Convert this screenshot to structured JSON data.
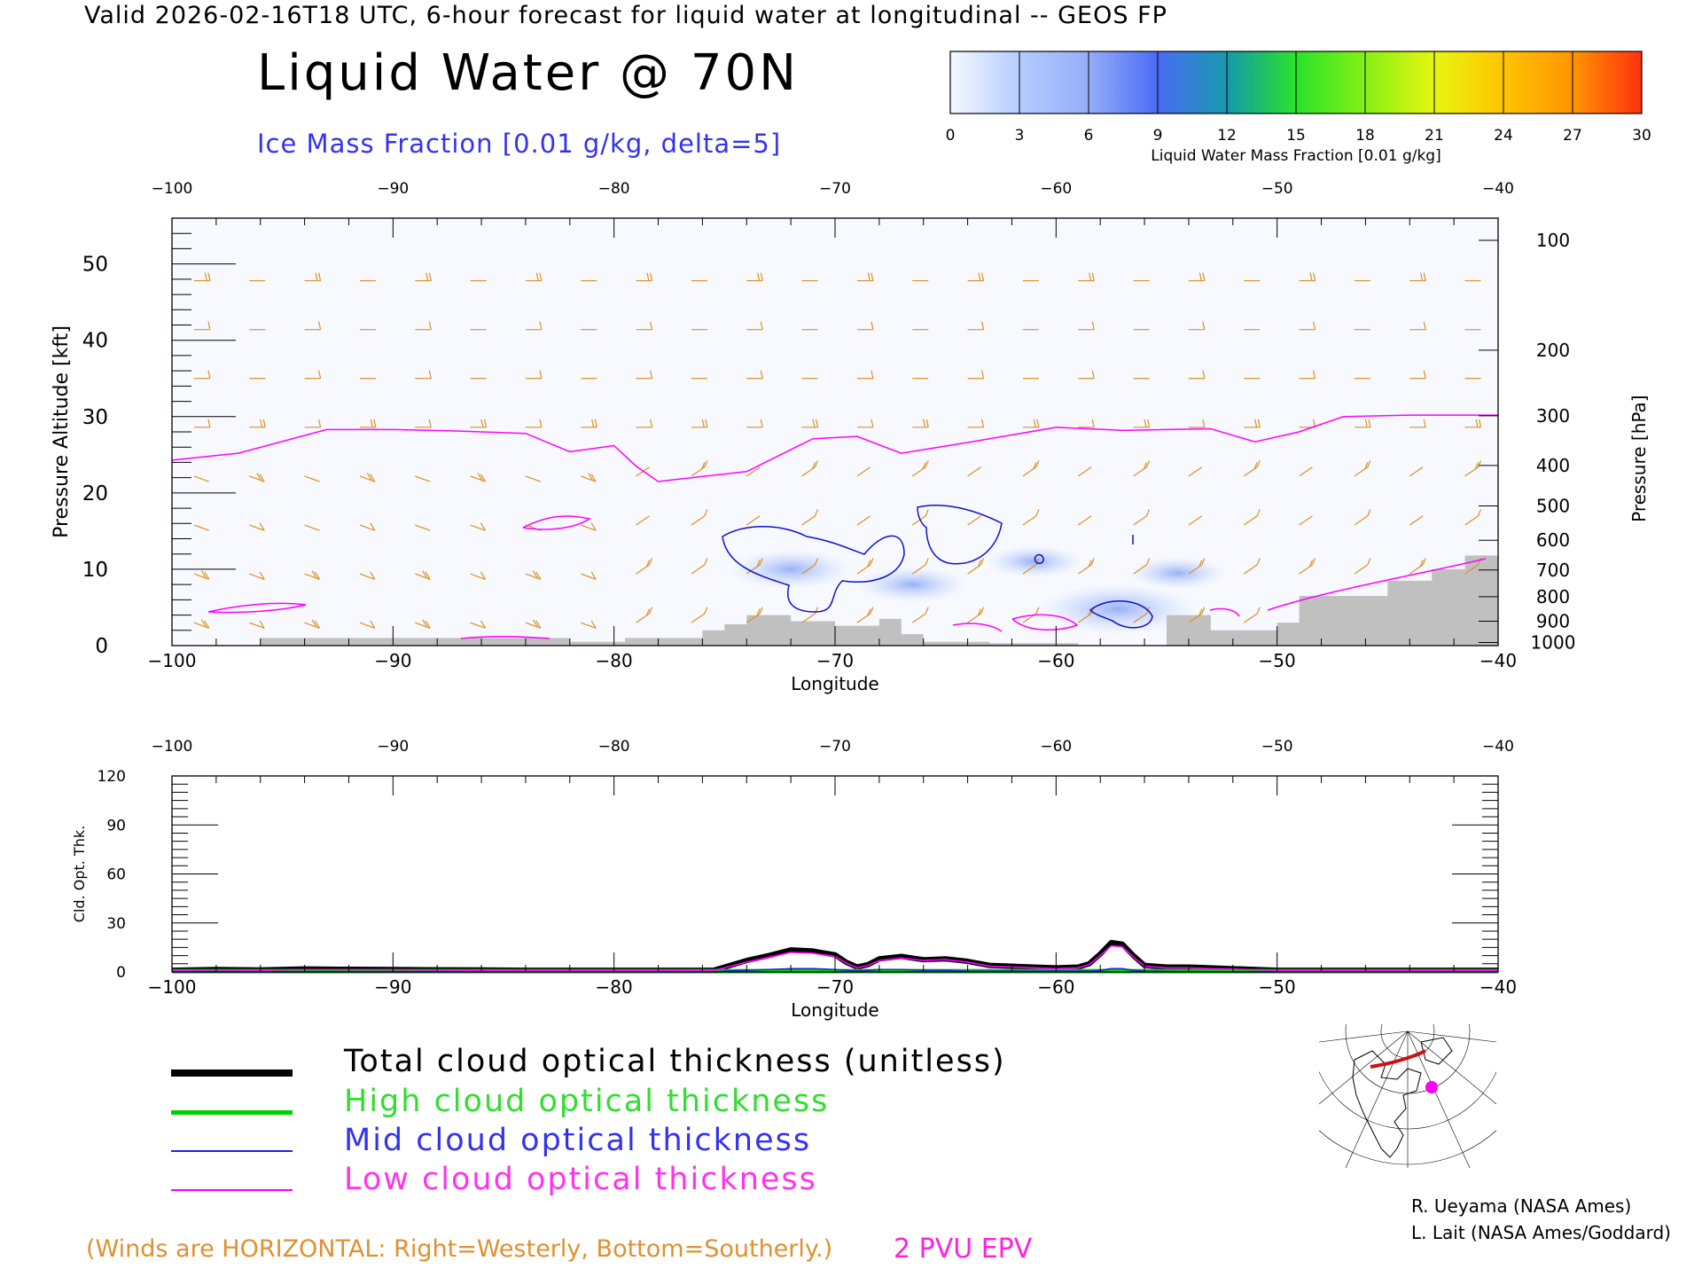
{
  "header": {
    "valid_line": "Valid 2026-02-16T18 UTC, 6-hour forecast for liquid water at longitudinal -- GEOS FP",
    "title": "Liquid Water @ 70N",
    "subtitle": "Ice Mass Fraction [0.01 g/kg, delta=5]"
  },
  "colorbar": {
    "label": "Liquid Water Mass Fraction [0.01 g/kg]",
    "ticks": [
      "0",
      "3",
      "6",
      "9",
      "12",
      "15",
      "18",
      "21",
      "24",
      "27",
      "30"
    ],
    "colors": [
      "#f6f8ff",
      "#b4ccff",
      "#95adf8",
      "#4b6bf5",
      "#159aab",
      "#2ae22a",
      "#85f014",
      "#e8f510",
      "#ffc400",
      "#ff9400",
      "#ff3010"
    ]
  },
  "chart_data": [
    {
      "type": "heatmap",
      "title": "Liquid Water @ 70N",
      "xlabel": "Longitude",
      "ylabel": "Pressure Altitude [kft]",
      "ylabel_right": "Pressure [hPa]",
      "xlim": [
        -100,
        -40
      ],
      "ylim": [
        0,
        56
      ],
      "x_ticks": [
        -100,
        -90,
        -80,
        -70,
        -60,
        -50,
        -40
      ],
      "y_ticks": [
        0,
        10,
        20,
        30,
        40,
        50
      ],
      "pressure_ticks_hpa": [
        "100",
        "200",
        "300",
        "400",
        "500",
        "600",
        "700",
        "800",
        "900",
        "1000"
      ],
      "pressure_tick_kft": [
        53.1,
        38.7,
        30.1,
        23.6,
        18.3,
        13.8,
        9.9,
        6.4,
        3.2,
        0.4
      ],
      "tropopause_2pvu": {
        "lon": [
          -100,
          -97,
          -93,
          -90,
          -87,
          -84,
          -82,
          -80,
          -79,
          -78,
          -74,
          -71,
          -69,
          -67,
          -64,
          -60,
          -57,
          -53,
          -51,
          -49,
          -47,
          -44,
          -40
        ],
        "kft": [
          24.3,
          25.2,
          28.3,
          28.3,
          28.1,
          27.8,
          25.4,
          26.2,
          23.5,
          21.5,
          22.8,
          27.1,
          27.4,
          25.2,
          26.6,
          28.6,
          28.2,
          28.4,
          26.7,
          28,
          30,
          30.2,
          30.2
        ]
      },
      "liquid_patches": [
        {
          "lon": -72.0,
          "kft": 10.0,
          "value": 4
        },
        {
          "lon": -66.5,
          "kft": 8.0,
          "value": 3
        },
        {
          "lon": -57.2,
          "kft": 4.8,
          "value": 7
        },
        {
          "lon": -61.0,
          "kft": 11.0,
          "value": 2
        },
        {
          "lon": -54.5,
          "kft": 9.5,
          "value": 2
        }
      ],
      "ice_contours_level": 5,
      "terrain": {
        "lon": [
          -96,
          -92,
          -85,
          -82,
          -79.5,
          -76,
          -75,
          -74,
          -72,
          -70,
          -68,
          -67,
          -66,
          -63,
          -59,
          -55,
          -53,
          -50,
          -49,
          -45,
          -43,
          -41.5,
          -40
        ],
        "kft": [
          1,
          1,
          1,
          0.5,
          1,
          2,
          2.8,
          4,
          3.2,
          2.6,
          3.5,
          1.5,
          0.5,
          0.3,
          0,
          4,
          2,
          3,
          6.5,
          8.5,
          10,
          11.8,
          11.8
        ]
      },
      "wind_barbs_note": "Winds are HORIZONTAL: Right=Westerly, Bottom=Southerly."
    },
    {
      "type": "line",
      "xlabel": "Longitude",
      "ylabel": "Cld. Opt. Thk.",
      "xlim": [
        -100,
        -40
      ],
      "ylim": [
        0,
        120
      ],
      "x_ticks": [
        -100,
        -90,
        -80,
        -70,
        -60,
        -50,
        -40
      ],
      "y_ticks": [
        0,
        30,
        60,
        90,
        120
      ],
      "x": [
        -100,
        -98,
        -96,
        -94,
        -92,
        -90,
        -88,
        -86,
        -84,
        -82,
        -80,
        -78,
        -76,
        -75.5,
        -75,
        -74,
        -73,
        -72,
        -71,
        -70,
        -69.5,
        -69,
        -68.5,
        -68,
        -67,
        -66,
        -65,
        -64,
        -63,
        -62,
        -61,
        -60,
        -59,
        -58.5,
        -58,
        -57.5,
        -57,
        -56.5,
        -56,
        -55,
        -54,
        -53,
        -52,
        -50,
        -48,
        -45,
        -42,
        -40
      ],
      "series": [
        {
          "name": "Total cloud optical thickness (unitless)",
          "color": "#000000",
          "values": [
            1,
            1.5,
            1.2,
            1.8,
            1.6,
            1.5,
            1.3,
            1.2,
            1,
            1,
            1,
            1,
            1,
            1,
            3,
            7,
            10,
            13.5,
            12.8,
            10.5,
            6,
            3,
            4.5,
            8,
            9.5,
            7.5,
            8,
            6.5,
            4,
            3.5,
            3,
            2.5,
            3,
            5,
            11,
            18,
            17,
            10,
            4,
            3,
            3,
            2.5,
            2,
            1,
            1,
            1,
            1,
            1
          ]
        },
        {
          "name": "High cloud optical thickness",
          "color": "#00d000",
          "values": [
            0.5,
            0.5,
            0.5,
            0.5,
            0.5,
            0.5,
            0.5,
            0.5,
            0.5,
            0.5,
            0.5,
            0.5,
            0.5,
            0.5,
            0.5,
            0.5,
            0.5,
            0.5,
            0.5,
            0.5,
            0.5,
            0.5,
            0.5,
            0.5,
            0.5,
            0.5,
            0.5,
            0.5,
            0.5,
            0.5,
            0.5,
            0.5,
            0.5,
            0.5,
            0.5,
            0.5,
            0.5,
            0.5,
            0.5,
            0.5,
            0.5,
            0.5,
            0.5,
            0.5,
            0.5,
            0.5,
            0.5,
            0.5
          ]
        },
        {
          "name": "Mid cloud optical thickness",
          "color": "#2222dd",
          "values": [
            0,
            0,
            0,
            0,
            0,
            0,
            0,
            0,
            0,
            0,
            0,
            0,
            0,
            0,
            0.5,
            1,
            1.5,
            2,
            2,
            1.5,
            1,
            0.5,
            1,
            1.5,
            1.5,
            1,
            1,
            0.5,
            0.5,
            0.5,
            0.5,
            0.5,
            0.5,
            0.5,
            1,
            2,
            2,
            1,
            0.5,
            0.3,
            0.2,
            0.2,
            0,
            0,
            0,
            0,
            0,
            0
          ]
        },
        {
          "name": "Low cloud optical thickness",
          "color": "#ff00ff",
          "values": [
            1,
            1.2,
            1,
            1.5,
            1.4,
            1.3,
            1.1,
            1,
            1,
            1,
            1,
            1,
            1,
            1,
            2.5,
            6,
            9,
            12,
            11.5,
            9.5,
            5.5,
            2.5,
            4,
            7,
            8.5,
            7,
            7.5,
            6,
            3.5,
            3,
            2.5,
            2,
            2.5,
            4.5,
            10,
            16,
            15.5,
            9,
            3.5,
            2.5,
            2.5,
            2,
            1.8,
            1,
            1,
            1,
            1,
            1
          ]
        }
      ]
    }
  ],
  "legend": {
    "total_label": "Total cloud optical thickness (unitless)",
    "high_label": "High cloud optical thickness",
    "mid_label": "Mid cloud optical thickness",
    "low_label": "Low cloud optical thickness"
  },
  "notes": {
    "winds": "(Winds are HORIZONTAL: Right=Westerly, Bottom=Southerly.)",
    "pvu": "2 PVU EPV"
  },
  "credits": {
    "line1": "R. Ueyama (NASA Ames)",
    "line2": "L. Lait (NASA Ames/Goddard)"
  },
  "colors": {
    "ice_contour": "#1111cc",
    "tropopause": "#ff00ff",
    "wind_barb": "#dd9020",
    "terrain": "#c0c0c0"
  }
}
